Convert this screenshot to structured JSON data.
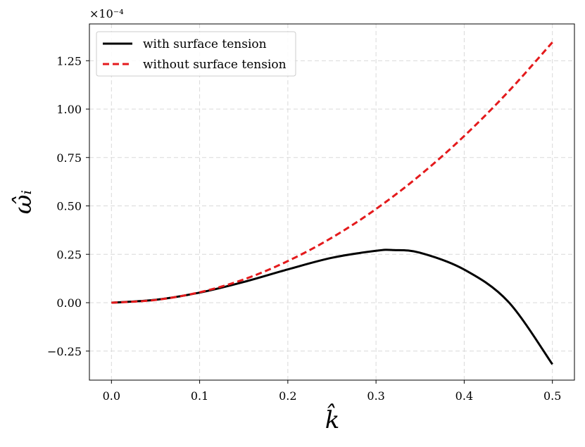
{
  "chart_data": {
    "type": "line",
    "xlabel": "k̂",
    "ylabel": "ω̂ᵢ",
    "y_scale_label": "×10⁻⁴",
    "xlim": [
      -0.025,
      0.525
    ],
    "ylim": [
      -0.4,
      1.44
    ],
    "x_ticks": [
      0.0,
      0.1,
      0.2,
      0.3,
      0.4,
      0.5
    ],
    "x_tick_labels": [
      "0.0",
      "0.1",
      "0.2",
      "0.3",
      "0.4",
      "0.5"
    ],
    "y_ticks": [
      -0.25,
      0.0,
      0.25,
      0.5,
      0.75,
      1.0,
      1.25
    ],
    "y_tick_labels": [
      "−0.25",
      "0.00",
      "0.25",
      "0.50",
      "0.75",
      "1.00",
      "1.25"
    ],
    "grid": true,
    "legend_position": "top-left",
    "series": [
      {
        "name": "with surface tension",
        "color": "#000000",
        "dash": "solid",
        "x": [
          0.0,
          0.05,
          0.1,
          0.15,
          0.2,
          0.25,
          0.3,
          0.32,
          0.35,
          0.4,
          0.45,
          0.5
        ],
        "values": [
          0.0,
          0.015,
          0.052,
          0.107,
          0.172,
          0.232,
          0.268,
          0.272,
          0.258,
          0.171,
          0.005,
          -0.318
        ]
      },
      {
        "name": "without surface tension",
        "color": "#e41a1c",
        "dash": "dashed",
        "x": [
          0.0,
          0.05,
          0.1,
          0.15,
          0.2,
          0.25,
          0.3,
          0.35,
          0.4,
          0.45,
          0.5
        ],
        "values": [
          0.0,
          0.014,
          0.054,
          0.12,
          0.215,
          0.336,
          0.484,
          0.659,
          0.861,
          1.09,
          1.345
        ]
      }
    ]
  }
}
